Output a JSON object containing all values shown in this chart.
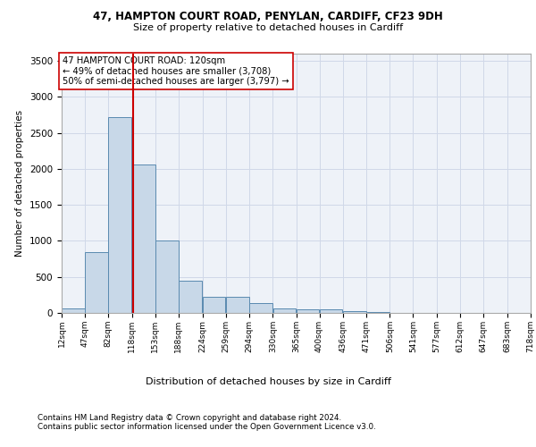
{
  "title1": "47, HAMPTON COURT ROAD, PENYLAN, CARDIFF, CF23 9DH",
  "title2": "Size of property relative to detached houses in Cardiff",
  "xlabel": "Distribution of detached houses by size in Cardiff",
  "ylabel": "Number of detached properties",
  "footnote1": "Contains HM Land Registry data © Crown copyright and database right 2024.",
  "footnote2": "Contains public sector information licensed under the Open Government Licence v3.0.",
  "bar_color": "#c8d8e8",
  "bar_edge_color": "#5a8ab0",
  "grid_color": "#d0d8e8",
  "background_color": "#eef2f8",
  "vline_color": "#cc0000",
  "vline_x": 120,
  "annotation_text": "47 HAMPTON COURT ROAD: 120sqm\n← 49% of detached houses are smaller (3,708)\n50% of semi-detached houses are larger (3,797) →",
  "bin_edges": [
    12,
    47,
    82,
    118,
    153,
    188,
    224,
    259,
    294,
    330,
    365,
    400,
    436,
    471,
    506,
    541,
    577,
    612,
    647,
    683,
    718
  ],
  "bin_labels": [
    "12sqm",
    "47sqm",
    "82sqm",
    "118sqm",
    "153sqm",
    "188sqm",
    "224sqm",
    "259sqm",
    "294sqm",
    "330sqm",
    "365sqm",
    "400sqm",
    "436sqm",
    "471sqm",
    "506sqm",
    "541sqm",
    "577sqm",
    "612sqm",
    "647sqm",
    "683sqm",
    "718sqm"
  ],
  "bar_heights": [
    60,
    850,
    2720,
    2060,
    1010,
    450,
    220,
    220,
    135,
    65,
    55,
    55,
    30,
    10,
    5,
    0,
    0,
    0,
    0,
    0
  ],
  "ylim": [
    0,
    3600
  ],
  "yticks": [
    0,
    500,
    1000,
    1500,
    2000,
    2500,
    3000,
    3500
  ]
}
